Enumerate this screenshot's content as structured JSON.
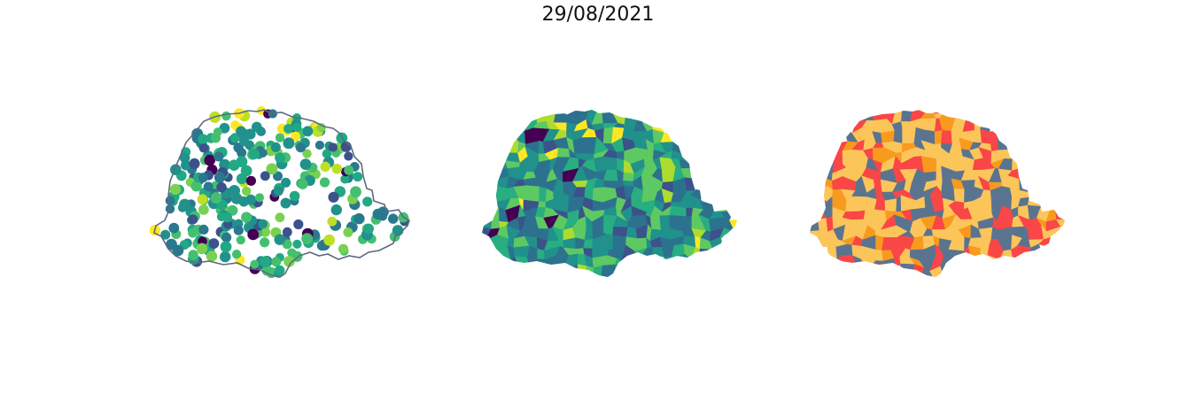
{
  "figure": {
    "title": "29/08/2021"
  },
  "panels": [
    {
      "id": "points",
      "type": "scatter-on-outline",
      "palette": [
        "#440154",
        "#3b528b",
        "#2a788e",
        "#21918c",
        "#22a884",
        "#44bf70",
        "#7ad151",
        "#bddf26",
        "#fde725"
      ],
      "outline_color": "#5b6b80",
      "background": "#ffffff"
    },
    {
      "id": "choropleth",
      "type": "choropleth",
      "palette": [
        "#440154",
        "#3b528b",
        "#2c728e",
        "#21918c",
        "#28ae80",
        "#5ec962",
        "#addc30",
        "#fde725"
      ]
    },
    {
      "id": "categorical",
      "type": "choropleth",
      "palette": [
        "#fbc55a",
        "#f79a1e",
        "#f94646",
        "#5a7490"
      ]
    }
  ]
}
